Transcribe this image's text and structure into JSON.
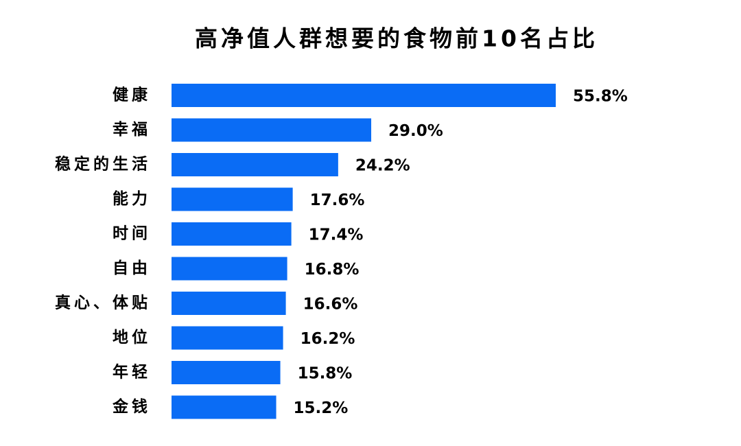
{
  "chart_data": {
    "type": "bar",
    "orientation": "horizontal",
    "title": "高净值人群想要的食物前10名占比",
    "categories": [
      "健康",
      "幸福",
      "稳定的生活",
      "能力",
      "时间",
      "自由",
      "真心、体贴",
      "地位",
      "年轻",
      "金钱"
    ],
    "values": [
      55.8,
      29.0,
      24.2,
      17.6,
      17.4,
      16.8,
      16.6,
      16.2,
      15.8,
      15.2
    ],
    "value_labels": [
      "55.8%",
      "29.0%",
      "24.2%",
      "17.6%",
      "17.4%",
      "16.8%",
      "16.6%",
      "16.2%",
      "15.8%",
      "15.2%"
    ],
    "color": "#0a6cf5"
  }
}
